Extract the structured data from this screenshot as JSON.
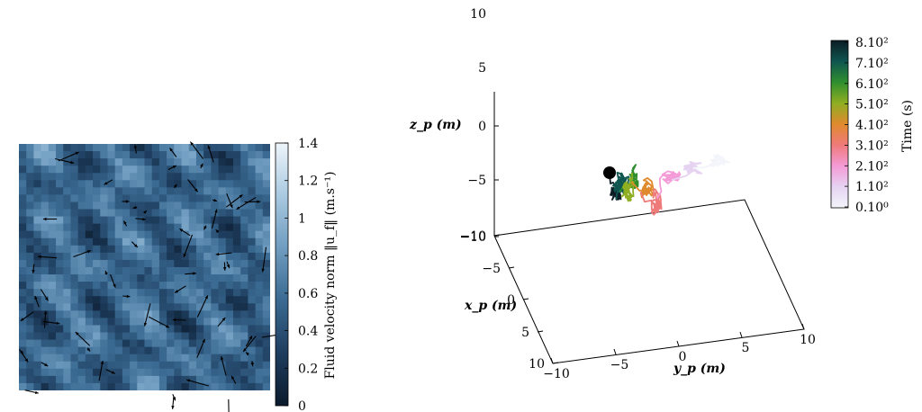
{
  "chart_data": [
    {
      "type": "heatmap",
      "title": "",
      "overlay": "quiver",
      "colorbar": {
        "label": "Fluid velocity norm ‖u_f‖ (m.s⁻¹)",
        "range": [
          0,
          1.4
        ],
        "ticks": [
          "0",
          "0.2",
          "0.4",
          "0.6",
          "0.8",
          "1",
          "1.2",
          "1.4"
        ],
        "colors": [
          "#0b1a2c",
          "#1e3d5e",
          "#3a6a92",
          "#6f9cc0",
          "#a9c9e0",
          "#eef5fb"
        ]
      }
    },
    {
      "type": "line",
      "subtype": "3d-trajectory",
      "title": "",
      "axes": {
        "z": {
          "label": "z_p (m)",
          "ticks": [
            "10",
            "5",
            "0",
            "−5",
            "−10"
          ],
          "range": [
            -10,
            10
          ]
        },
        "x": {
          "label": "x_p (m)",
          "ticks": [
            "−10",
            "−5",
            "0",
            "5",
            "10"
          ],
          "range": [
            -10,
            10
          ]
        },
        "y": {
          "label": "y_p (m)",
          "ticks": [
            "−10",
            "−5",
            "0",
            "5",
            "10"
          ],
          "range": [
            -10,
            10
          ]
        }
      },
      "trajectory_color_by": "time",
      "start_marker": "black-dot",
      "colorbar": {
        "label": "Time (s)",
        "ticks": [
          "8.10²",
          "7.10²",
          "6.10²",
          "5.10²",
          "4.10²",
          "3.10²",
          "2.10²",
          "1.10²",
          "0.10⁰"
        ],
        "colors": [
          "#0c1c24",
          "#0f5550",
          "#2f8f2f",
          "#8fae22",
          "#e08a2e",
          "#ef7a7a",
          "#f49ad6",
          "#e6d3f2",
          "#f3f5fb"
        ]
      }
    }
  ]
}
